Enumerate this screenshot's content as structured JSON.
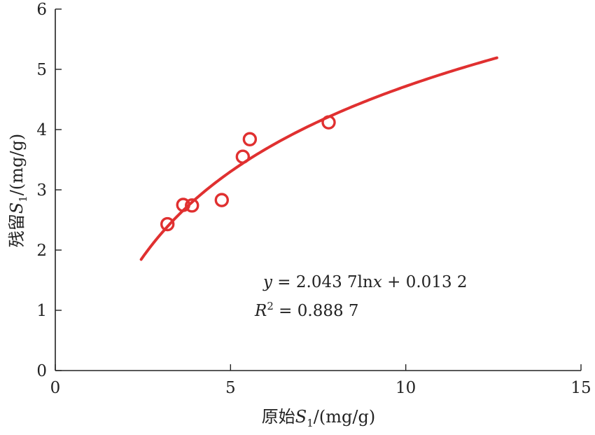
{
  "chart_data": {
    "type": "scatter",
    "xlabel": "原始S1/(mg/g)",
    "ylabel": "残留S1/(mg/g)",
    "xlim": [
      0,
      15
    ],
    "ylim": [
      0,
      6
    ],
    "xticks": [
      "0",
      "5",
      "10",
      "15"
    ],
    "yticks": [
      "0",
      "1",
      "2",
      "3",
      "4",
      "5",
      "6"
    ],
    "series": [
      {
        "type": "scatter",
        "marker": "circle-open",
        "color": "#e03030",
        "points": [
          {
            "x": 3.2,
            "y": 2.43
          },
          {
            "x": 3.65,
            "y": 2.75
          },
          {
            "x": 3.9,
            "y": 2.74
          },
          {
            "x": 4.75,
            "y": 2.83
          },
          {
            "x": 5.35,
            "y": 3.55
          },
          {
            "x": 5.55,
            "y": 3.84
          },
          {
            "x": 7.8,
            "y": 4.12
          }
        ]
      },
      {
        "type": "line",
        "fit": "log",
        "color": "#e03030",
        "a": 2.0437,
        "b": 0.0132,
        "x_range": [
          2.45,
          12.6
        ]
      }
    ],
    "annotations": {
      "equation": "y = 2.043 7lnx + 0.013 2",
      "r2": "R2 = 0.888 7"
    }
  },
  "labels": {
    "x_label_prefix": "原始",
    "x_label_var": "S",
    "x_label_sub": "1",
    "x_label_unit": "/(mg/g)",
    "y_label_prefix": "残留",
    "y_label_var": "S",
    "y_label_sub": "1",
    "y_label_unit": "/(mg/g)",
    "eq_y": "y",
    "eq_mid": " = 2.043 7ln",
    "eq_x": "x",
    "eq_tail": " + 0.013 2",
    "r2_R": "R",
    "r2_sup": "2",
    "r2_val": " = 0.888 7"
  }
}
